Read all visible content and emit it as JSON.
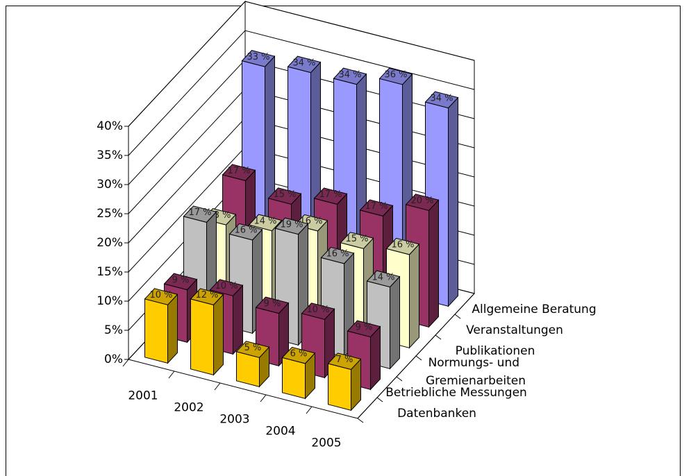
{
  "chart_data": {
    "type": "bar",
    "categories": [
      "2001",
      "2002",
      "2003",
      "2004",
      "2005"
    ],
    "series": [
      {
        "name": "Datenbanken",
        "color": "#ffcc00",
        "values": [
          10,
          12,
          5,
          6,
          7
        ],
        "value_labels": [
          "10 %",
          "12 %",
          "5 %",
          "6 %",
          "7 %"
        ]
      },
      {
        "name": "Betriebliche Messungen",
        "color": "#993366",
        "values": [
          9,
          10,
          9,
          10,
          9
        ],
        "value_labels": [
          "9 %",
          "10 %",
          "9 %",
          "10 %",
          "9 %"
        ]
      },
      {
        "name": "Normungs- und Gremienarbeiten",
        "color": "#c0c0c0",
        "values": [
          17,
          16,
          19,
          16,
          14
        ],
        "value_labels": [
          "17 %",
          "16 %",
          "19 %",
          "16 %",
          "14 %"
        ]
      },
      {
        "name": "Publikationen",
        "color": "#ffffcc",
        "values": [
          13,
          14,
          16,
          15,
          16
        ],
        "value_labels": [
          "13 %",
          "14 %",
          "16 %",
          "15 %",
          "16 %"
        ]
      },
      {
        "name": "Veranstaltungen",
        "color": "#993366",
        "values": [
          17,
          15,
          17,
          17,
          20
        ],
        "value_labels": [
          "17 %",
          "15 %",
          "17 %",
          "17 %",
          "20 %"
        ]
      },
      {
        "name": "Allgemeine Beratung",
        "color": "#9999ff",
        "values": [
          33,
          34,
          34,
          36,
          34
        ],
        "value_labels": [
          "33 %",
          "34 %",
          "34 %",
          "36 %",
          "34 %"
        ]
      }
    ],
    "ylim": [
      0,
      40
    ],
    "yticks": [
      {
        "value": 0,
        "label": "0%"
      },
      {
        "value": 5,
        "label": "5%"
      },
      {
        "value": 10,
        "label": "10%"
      },
      {
        "value": 15,
        "label": "15%"
      },
      {
        "value": 20,
        "label": "20%"
      },
      {
        "value": 25,
        "label": "25%"
      },
      {
        "value": 30,
        "label": "30%"
      },
      {
        "value": 35,
        "label": "35%"
      },
      {
        "value": 40,
        "label": "40%"
      }
    ],
    "grid": true
  }
}
